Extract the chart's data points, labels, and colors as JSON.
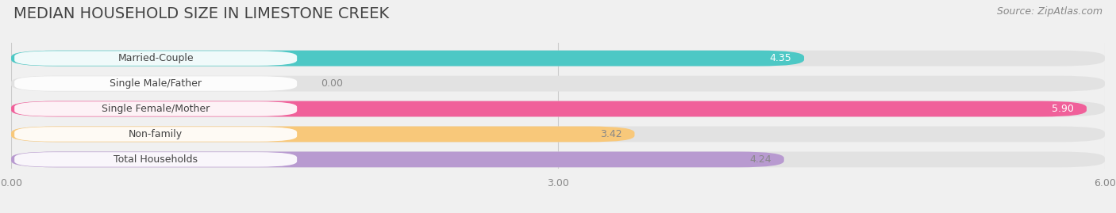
{
  "title": "MEDIAN HOUSEHOLD SIZE IN LIMESTONE CREEK",
  "source": "Source: ZipAtlas.com",
  "categories": [
    "Married-Couple",
    "Single Male/Father",
    "Single Female/Mother",
    "Non-family",
    "Total Households"
  ],
  "values": [
    4.35,
    0.0,
    5.9,
    3.42,
    4.24
  ],
  "bar_colors": [
    "#4dc8c5",
    "#a0b4e8",
    "#f0609a",
    "#f8c87a",
    "#b89ad0"
  ],
  "value_label_colors": [
    "white",
    "#888888",
    "white",
    "#888888",
    "#888888"
  ],
  "xlim": [
    0,
    6.0
  ],
  "xtick_labels": [
    "0.00",
    "3.00",
    "6.00"
  ],
  "background_color": "#f0f0f0",
  "bar_bg_color": "#e2e2e2",
  "label_bg_color": "#ffffff",
  "title_fontsize": 14,
  "source_fontsize": 9,
  "label_fontsize": 9,
  "value_fontsize": 9
}
